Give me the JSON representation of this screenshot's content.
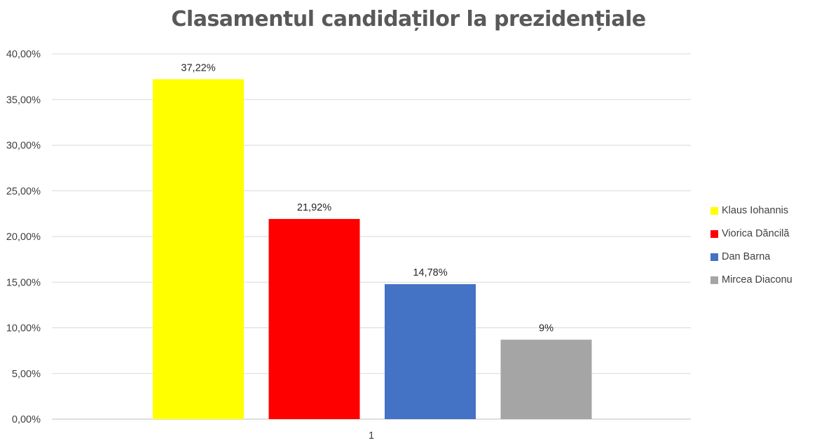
{
  "chart_data": {
    "type": "bar",
    "title": "Clasamentul candidaților la prezidențiale",
    "categories": [
      "1"
    ],
    "series": [
      {
        "name": "Klaus Iohannis",
        "values": [
          37.22
        ],
        "color": "#FFFF00",
        "label": "37,22%"
      },
      {
        "name": "Viorica Dăncilă",
        "values": [
          21.92
        ],
        "color": "#FF0000",
        "label": "21,92%"
      },
      {
        "name": "Dan Barna",
        "values": [
          14.78
        ],
        "color": "#4472C4",
        "label": "14,78%"
      },
      {
        "name": "Mircea Diaconu",
        "values": [
          8.7
        ],
        "color": "#A5A5A5",
        "label": "9%"
      }
    ],
    "ylim": [
      0,
      40
    ],
    "yticks": [
      0,
      5,
      10,
      15,
      20,
      25,
      30,
      35,
      40
    ],
    "ytick_labels": [
      "0,00%",
      "5,00%",
      "10,00%",
      "15,00%",
      "20,00%",
      "25,00%",
      "30,00%",
      "35,00%",
      "40,00%"
    ],
    "xlabel": "",
    "ylabel": "",
    "grid": true,
    "legend_position": "right"
  }
}
